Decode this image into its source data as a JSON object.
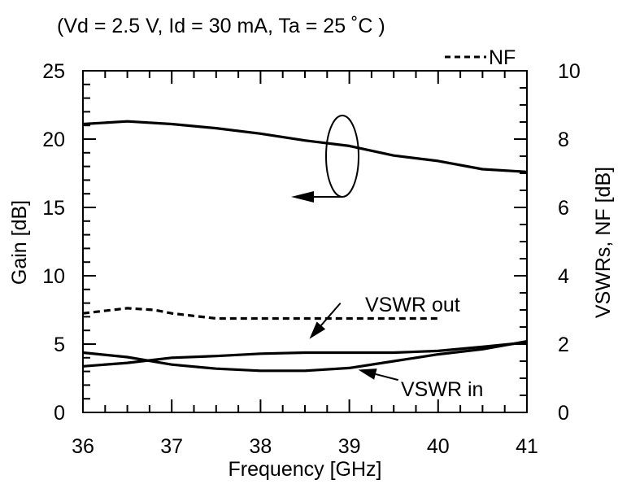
{
  "chart_data": {
    "type": "line",
    "subtitle": "(Vd = 2.5 V, Id = 30 mA, Ta = 25 ˚C )",
    "xlabel": "Frequency  [GHz]",
    "ylabel_left": "Gain [dB]",
    "ylabel_right": "VSWRs, NF [dB]",
    "xlim": [
      36,
      41
    ],
    "ylim_left": [
      0,
      25
    ],
    "ylim_right": [
      0,
      10
    ],
    "x_ticks": [
      "36",
      "37",
      "38",
      "39",
      "40",
      "41"
    ],
    "y_ticks_left": [
      "0",
      "5",
      "10",
      "15",
      "20",
      "25"
    ],
    "y_ticks_right": [
      "0",
      "2",
      "4",
      "6",
      "8",
      "10"
    ],
    "legend": {
      "label": "NF",
      "style": "dashed",
      "placement": "top-right"
    },
    "series": [
      {
        "key": "gain",
        "axis": "left",
        "style": "solid",
        "x": [
          36,
          36.5,
          37,
          37.5,
          38,
          38.5,
          39,
          39.5,
          40,
          40.5,
          41
        ],
        "y": [
          21.1,
          21.3,
          21.1,
          20.8,
          20.4,
          19.9,
          19.5,
          18.8,
          18.4,
          17.8,
          17.6
        ]
      },
      {
        "key": "nf",
        "axis": "right",
        "style": "dashed",
        "name": "NF",
        "x": [
          36,
          36.5,
          36.8,
          37,
          37.5,
          38,
          38.5,
          39,
          39.5,
          40
        ],
        "y": [
          2.9,
          3.05,
          3.0,
          2.9,
          2.75,
          2.75,
          2.75,
          2.75,
          2.75,
          2.75
        ]
      },
      {
        "key": "vswr_out",
        "axis": "right",
        "style": "solid",
        "x": [
          36,
          36.5,
          37,
          37.5,
          38,
          38.5,
          39,
          39.5,
          40,
          40.5,
          41
        ],
        "y": [
          1.35,
          1.45,
          1.6,
          1.65,
          1.72,
          1.75,
          1.75,
          1.75,
          1.8,
          1.92,
          2.05
        ]
      },
      {
        "key": "vswr_in",
        "axis": "right",
        "style": "solid",
        "x": [
          36,
          36.5,
          37,
          37.5,
          38,
          38.5,
          39,
          39.5,
          40,
          40.5,
          41
        ],
        "y": [
          1.75,
          1.62,
          1.4,
          1.28,
          1.22,
          1.22,
          1.3,
          1.5,
          1.7,
          1.85,
          2.08
        ]
      }
    ],
    "annotations": [
      {
        "text": "VSWR out",
        "arrow_from": [
          38.9,
          3.2
        ],
        "arrow_to": [
          38.55,
          2.15
        ]
      },
      {
        "text": "VSWR in",
        "arrow_from": [
          39.55,
          0.95
        ],
        "arrow_to": [
          39.1,
          1.25
        ]
      }
    ],
    "grid": false
  }
}
